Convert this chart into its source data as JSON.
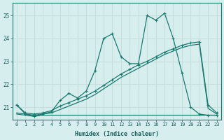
{
  "xlabel": "Humidex (Indice chaleur)",
  "background_color": "#d6eeee",
  "grid_color": "#c8dede",
  "line_color": "#1a7a6e",
  "xlim": [
    -0.5,
    23.5
  ],
  "ylim": [
    20.45,
    25.55
  ],
  "yticks": [
    21,
    22,
    23,
    24,
    25
  ],
  "xticks": [
    0,
    1,
    2,
    3,
    4,
    5,
    6,
    7,
    8,
    9,
    10,
    11,
    12,
    13,
    14,
    15,
    16,
    17,
    18,
    19,
    20,
    21,
    22,
    23
  ],
  "curve_main_x": [
    0,
    1,
    2,
    3,
    4,
    5,
    6,
    7,
    8,
    9,
    10,
    11,
    12,
    13,
    14,
    15,
    16,
    17,
    18,
    19,
    20,
    21,
    22,
    23
  ],
  "curve_main_y": [
    21.1,
    20.7,
    20.6,
    20.7,
    20.8,
    21.3,
    21.6,
    21.4,
    21.7,
    22.6,
    24.0,
    24.2,
    23.2,
    22.9,
    22.9,
    25.0,
    24.8,
    25.1,
    24.0,
    22.5,
    21.0,
    20.7,
    20.65,
    20.65
  ],
  "curve_trend1_x": [
    0,
    1,
    2,
    3,
    4,
    5,
    6,
    7,
    8,
    9,
    10,
    11,
    12,
    13,
    14,
    15,
    16,
    17,
    18,
    19,
    20,
    21,
    22,
    23
  ],
  "curve_trend1_y": [
    21.1,
    20.75,
    20.7,
    20.75,
    20.85,
    21.05,
    21.2,
    21.35,
    21.5,
    21.7,
    21.95,
    22.2,
    22.45,
    22.65,
    22.85,
    23.0,
    23.2,
    23.4,
    23.55,
    23.7,
    23.8,
    23.85,
    21.1,
    20.75
  ],
  "curve_trend2_x": [
    0,
    1,
    2,
    3,
    4,
    5,
    6,
    7,
    8,
    9,
    10,
    11,
    12,
    13,
    14,
    15,
    16,
    17,
    18,
    19,
    20,
    21,
    22,
    23
  ],
  "curve_trend2_y": [
    20.75,
    20.7,
    20.65,
    20.7,
    20.75,
    20.9,
    21.05,
    21.2,
    21.35,
    21.55,
    21.8,
    22.05,
    22.3,
    22.5,
    22.7,
    22.9,
    23.1,
    23.3,
    23.45,
    23.6,
    23.7,
    23.75,
    20.95,
    20.7
  ],
  "curve_flat_x": [
    0,
    1,
    2,
    3,
    4,
    5,
    6,
    7,
    8,
    9,
    10,
    11,
    12,
    13,
    14,
    15,
    16,
    17,
    18,
    19,
    20,
    21,
    22,
    23
  ],
  "curve_flat_y": [
    20.7,
    20.65,
    20.6,
    20.65,
    20.65,
    20.65,
    20.65,
    20.65,
    20.65,
    20.65,
    20.65,
    20.65,
    20.65,
    20.65,
    20.65,
    20.65,
    20.65,
    20.65,
    20.65,
    20.65,
    20.65,
    20.65,
    20.65,
    20.65
  ]
}
